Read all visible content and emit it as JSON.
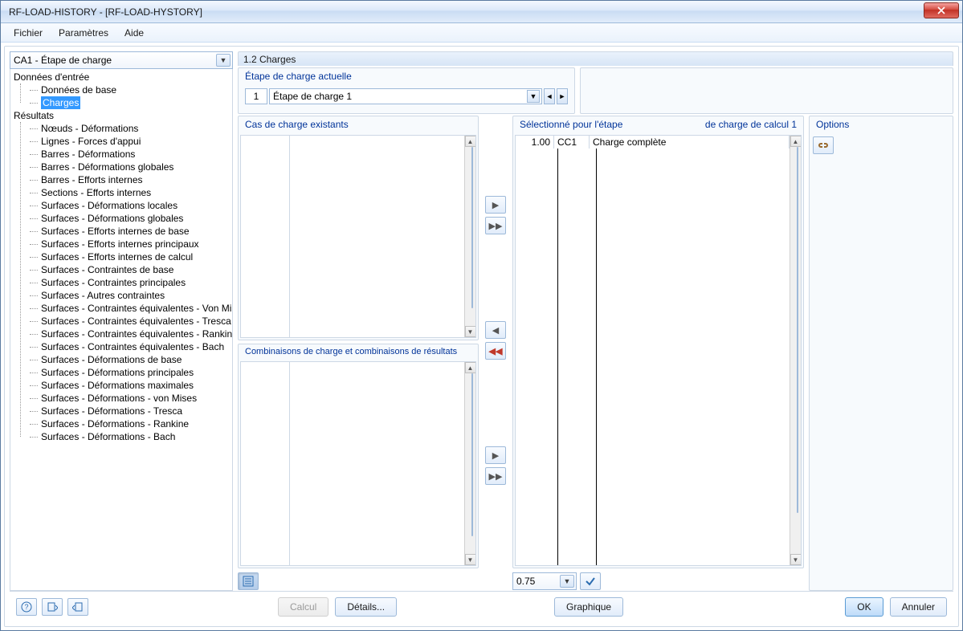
{
  "window": {
    "title": "RF-LOAD-HISTORY - [RF-LOAD-HYSTORY]"
  },
  "menu": {
    "items": [
      "Fichier",
      "Paramètres",
      "Aide"
    ]
  },
  "left": {
    "combo": "CA1 - Étape de charge",
    "tree": {
      "input_root": "Données d'entrée",
      "input_children": [
        "Données de base",
        "Charges"
      ],
      "selected": "Charges",
      "results_root": "Résultats",
      "results_children": [
        "Nœuds - Déformations",
        "Lignes - Forces d'appui",
        "Barres - Déformations",
        "Barres - Déformations globales",
        "Barres - Efforts internes",
        "Sections - Efforts internes",
        "Surfaces - Déformations locales",
        "Surfaces - Déformations globales",
        "Surfaces - Efforts internes de base",
        "Surfaces - Efforts internes principaux",
        "Surfaces - Efforts internes de calcul",
        "Surfaces - Contraintes de base",
        "Surfaces - Contraintes principales",
        "Surfaces - Autres contraintes",
        "Surfaces - Contraintes équivalentes - Von Mises",
        "Surfaces - Contraintes équivalentes - Tresca",
        "Surfaces - Contraintes équivalentes - Rankine",
        "Surfaces - Contraintes équivalentes - Bach",
        "Surfaces - Déformations de base",
        "Surfaces - Déformations principales",
        "Surfaces - Déformations maximales",
        "Surfaces - Déformations - von Mises",
        "Surfaces - Déformations - Tresca",
        "Surfaces - Déformations - Rankine",
        "Surfaces - Déformations - Bach"
      ]
    }
  },
  "main": {
    "heading": "1.2 Charges",
    "step_group_title": "Étape de charge actuelle",
    "step_number": "1",
    "step_name": "Étape de charge 1",
    "existing_title": "Cas de charge existants",
    "combos_title": "Combinaisons de charge et combinaisons de résultats",
    "selected_title_left": "Sélectionné pour l'étape",
    "selected_title_right": "de charge de calcul 1",
    "selected_row": {
      "factor": "1.00",
      "case": "CC1",
      "desc": "Charge complète"
    },
    "factor_input": "0.75",
    "options_title": "Options"
  },
  "footer": {
    "calc": "Calcul",
    "details": "Détails...",
    "graph": "Graphique",
    "ok": "OK",
    "cancel": "Annuler"
  }
}
